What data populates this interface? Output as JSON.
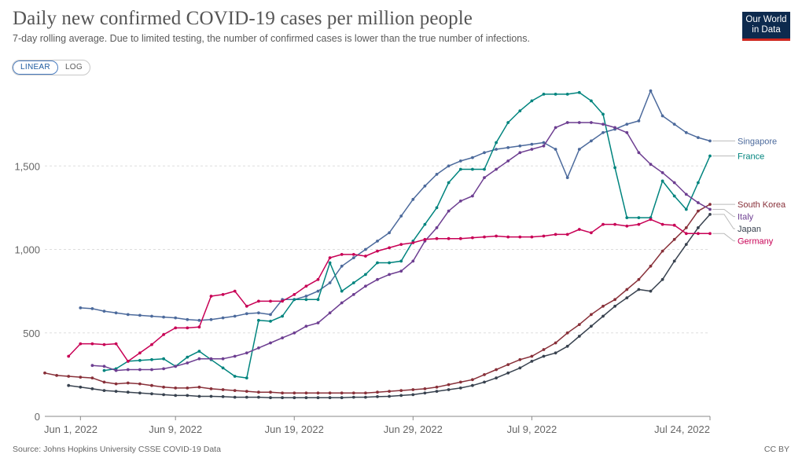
{
  "header": {
    "title": "Daily new confirmed COVID-19 cases per million people",
    "subtitle": "7-day rolling average. Due to limited testing, the number of confirmed cases is lower than the true number of infections.",
    "logo_line1": "Our World",
    "logo_line2": "in Data"
  },
  "controls": {
    "linear_label": "LINEAR",
    "log_label": "LOG",
    "selected": "LINEAR"
  },
  "footer": {
    "source": "Source: Johns Hopkins University CSSE COVID-19 Data",
    "license": "CC BY"
  },
  "chart_data": {
    "type": "line",
    "x_start": "2022-05-29",
    "x_end": "2022-07-24",
    "x_ticks": [
      "Jun 1, 2022",
      "Jun 9, 2022",
      "Jun 19, 2022",
      "Jun 29, 2022",
      "Jul 9, 2022",
      "Jul 24, 2022"
    ],
    "y_ticks": [
      "0",
      "500",
      "1,000",
      "1,500"
    ],
    "ylim": [
      0,
      2000
    ],
    "grid": "horizontal dashed",
    "legend": "right, inline labels",
    "series": [
      {
        "name": "Singapore",
        "color": "#4c6a9c",
        "values": [
          650,
          645,
          630,
          620,
          610,
          605,
          600,
          595,
          590,
          580,
          575,
          580,
          590,
          600,
          615,
          620,
          610,
          700,
          700,
          720,
          750,
          800,
          900,
          950,
          1000,
          1050,
          1100,
          1200,
          1300,
          1380,
          1450,
          1500,
          1530,
          1550,
          1580,
          1600,
          1610,
          1620,
          1630,
          1640,
          1600,
          1430,
          1600,
          1650,
          1700,
          1720,
          1750,
          1770,
          1950,
          1800,
          1750,
          1700,
          1670,
          1650
        ]
      },
      {
        "name": "France",
        "color": "#00847e",
        "values": [
          275,
          285,
          330,
          335,
          340,
          345,
          300,
          355,
          390,
          340,
          290,
          240,
          230,
          575,
          570,
          600,
          700,
          700,
          700,
          920,
          750,
          800,
          850,
          920,
          920,
          930,
          1050,
          1150,
          1250,
          1400,
          1480,
          1480,
          1480,
          1640,
          1760,
          1830,
          1890,
          1930,
          1930,
          1930,
          1940,
          1890,
          1810,
          1490,
          1190,
          1190,
          1190,
          1410,
          1320,
          1240,
          1400,
          1560
        ]
      },
      {
        "name": "South Korea",
        "color": "#883039",
        "values": [
          260,
          245,
          240,
          235,
          230,
          205,
          195,
          200,
          195,
          185,
          175,
          170,
          170,
          175,
          165,
          160,
          155,
          150,
          145,
          145,
          140,
          140,
          140,
          140,
          140,
          140,
          140,
          140,
          145,
          150,
          155,
          160,
          165,
          175,
          190,
          205,
          220,
          250,
          280,
          310,
          340,
          360,
          400,
          440,
          500,
          550,
          610,
          660,
          700,
          760,
          820,
          900,
          990,
          1060,
          1130,
          1230,
          1270
        ]
      },
      {
        "name": "Italy",
        "color": "#6d3e91",
        "values": [
          305,
          300,
          275,
          280,
          280,
          280,
          285,
          300,
          320,
          345,
          345,
          345,
          360,
          380,
          410,
          440,
          470,
          500,
          540,
          560,
          620,
          680,
          730,
          780,
          820,
          850,
          870,
          930,
          1050,
          1130,
          1230,
          1290,
          1320,
          1430,
          1480,
          1530,
          1580,
          1600,
          1620,
          1730,
          1760,
          1760,
          1760,
          1750,
          1730,
          1700,
          1580,
          1510,
          1460,
          1400,
          1330,
          1280,
          1240
        ]
      },
      {
        "name": "Japan",
        "color": "#38424f",
        "values": [
          185,
          175,
          165,
          155,
          150,
          145,
          140,
          135,
          130,
          125,
          125,
          120,
          120,
          118,
          115,
          115,
          115,
          112,
          112,
          112,
          112,
          112,
          112,
          112,
          115,
          115,
          118,
          120,
          125,
          130,
          140,
          150,
          160,
          170,
          185,
          205,
          230,
          260,
          290,
          330,
          360,
          380,
          420,
          480,
          540,
          600,
          660,
          710,
          760,
          750,
          820,
          930,
          1030,
          1130,
          1210
        ]
      },
      {
        "name": "Germany",
        "color": "#c80055",
        "values": [
          360,
          435,
          435,
          430,
          435,
          330,
          380,
          430,
          490,
          530,
          530,
          535,
          720,
          730,
          750,
          660,
          690,
          690,
          690,
          730,
          780,
          820,
          950,
          970,
          970,
          960,
          990,
          1010,
          1030,
          1040,
          1060,
          1065,
          1065,
          1065,
          1070,
          1075,
          1080,
          1075,
          1075,
          1075,
          1080,
          1090,
          1090,
          1120,
          1100,
          1150,
          1150,
          1140,
          1150,
          1180,
          1150,
          1145,
          1095,
          1095,
          1095
        ]
      }
    ]
  }
}
